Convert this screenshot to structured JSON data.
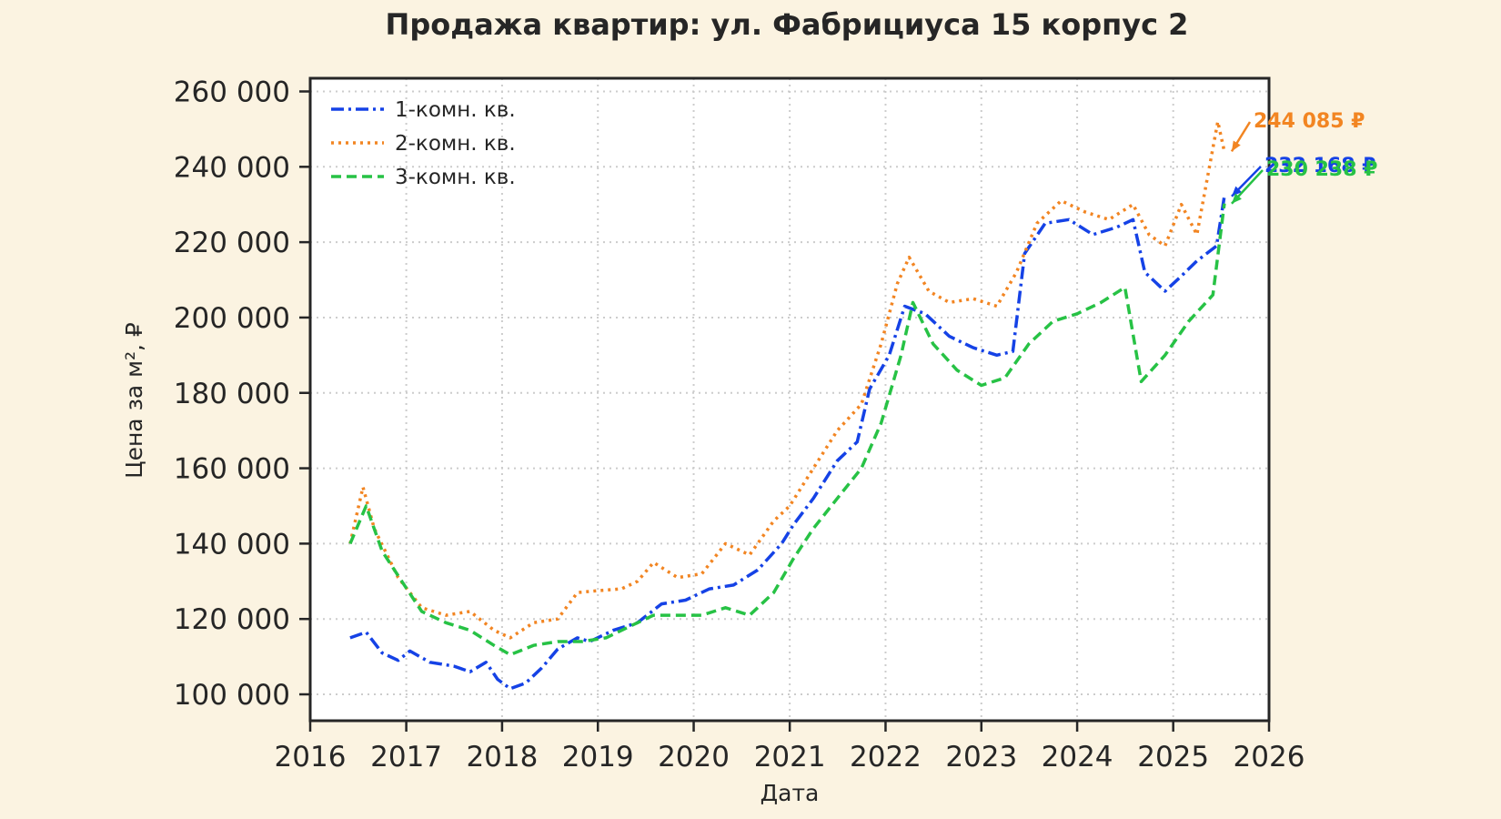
{
  "chart_data": {
    "type": "line",
    "title": "Продажа квартир: ул. Фабрициуса 15 корпус 2",
    "xlabel": "Дата",
    "ylabel": "Цена за м², ₽",
    "xlim": [
      "2016-01-01",
      "2026-01-01"
    ],
    "ylim": [
      93000,
      263500
    ],
    "x_ticks": [
      "2016",
      "2017",
      "2018",
      "2019",
      "2020",
      "2021",
      "2022",
      "2023",
      "2024",
      "2025",
      "2026"
    ],
    "y_ticks": [
      "100 000",
      "120 000",
      "140 000",
      "160 000",
      "180 000",
      "200 000",
      "220 000",
      "240 000",
      "260 000"
    ],
    "grid": true,
    "legend_position": "top-left",
    "colors": {
      "background": "#fbf3e1",
      "plot_bg": "#ffffff",
      "frame": "#262626",
      "grid": "#cccccc"
    },
    "series": [
      {
        "name": "1-комн. кв.",
        "color": "#1542e6",
        "style": "dashdot",
        "end_label": "232 168 ₽",
        "points": [
          [
            "2016-06-01",
            115000
          ],
          [
            "2016-08-01",
            116500
          ],
          [
            "2016-10-01",
            111000
          ],
          [
            "2016-12-01",
            109000
          ],
          [
            "2017-01-15",
            111500
          ],
          [
            "2017-04-01",
            108500
          ],
          [
            "2017-07-01",
            107500
          ],
          [
            "2017-09-01",
            106000
          ],
          [
            "2017-11-01",
            108500
          ],
          [
            "2017-12-15",
            104000
          ],
          [
            "2018-02-01",
            101500
          ],
          [
            "2018-04-01",
            103000
          ],
          [
            "2018-06-01",
            107000
          ],
          [
            "2018-08-01",
            112000
          ],
          [
            "2018-10-15",
            115000
          ],
          [
            "2018-12-01",
            114000
          ],
          [
            "2019-03-01",
            117000
          ],
          [
            "2019-06-01",
            119000
          ],
          [
            "2019-09-01",
            124000
          ],
          [
            "2019-12-01",
            125000
          ],
          [
            "2020-03-01",
            128000
          ],
          [
            "2020-06-01",
            129000
          ],
          [
            "2020-09-01",
            133000
          ],
          [
            "2020-12-01",
            140000
          ],
          [
            "2021-01-15",
            145000
          ],
          [
            "2021-04-01",
            152000
          ],
          [
            "2021-07-01",
            162000
          ],
          [
            "2021-09-15",
            167000
          ],
          [
            "2021-11-01",
            181000
          ],
          [
            "2022-01-15",
            190000
          ],
          [
            "2022-03-15",
            203000
          ],
          [
            "2022-06-01",
            201000
          ],
          [
            "2022-09-01",
            195000
          ],
          [
            "2022-12-01",
            192000
          ],
          [
            "2023-03-01",
            190000
          ],
          [
            "2023-05-01",
            191000
          ],
          [
            "2023-06-15",
            217000
          ],
          [
            "2023-09-01",
            225000
          ],
          [
            "2023-12-01",
            226000
          ],
          [
            "2024-03-01",
            222000
          ],
          [
            "2024-06-01",
            224000
          ],
          [
            "2024-08-01",
            226000
          ],
          [
            "2024-09-15",
            212000
          ],
          [
            "2024-12-01",
            207000
          ],
          [
            "2025-02-01",
            211000
          ],
          [
            "2025-04-01",
            215000
          ],
          [
            "2025-06-15",
            219000
          ],
          [
            "2025-07-15",
            232168
          ]
        ]
      },
      {
        "name": "2-комн. кв.",
        "color": "#f28522",
        "style": "dotted",
        "end_label": "244 085 ₽",
        "points": [
          [
            "2016-06-01",
            140000
          ],
          [
            "2016-07-20",
            155000
          ],
          [
            "2016-09-01",
            144000
          ],
          [
            "2016-12-01",
            131000
          ],
          [
            "2017-03-01",
            123000
          ],
          [
            "2017-06-01",
            121000
          ],
          [
            "2017-09-01",
            122000
          ],
          [
            "2017-12-01",
            117000
          ],
          [
            "2018-02-01",
            115000
          ],
          [
            "2018-05-01",
            119000
          ],
          [
            "2018-08-01",
            120000
          ],
          [
            "2018-10-15",
            127000
          ],
          [
            "2019-01-01",
            127500
          ],
          [
            "2019-04-01",
            128000
          ],
          [
            "2019-06-01",
            130000
          ],
          [
            "2019-08-01",
            135000
          ],
          [
            "2019-11-01",
            131000
          ],
          [
            "2020-02-01",
            132000
          ],
          [
            "2020-05-01",
            140000
          ],
          [
            "2020-08-01",
            137000
          ],
          [
            "2020-11-01",
            146000
          ],
          [
            "2021-01-01",
            150000
          ],
          [
            "2021-04-01",
            160000
          ],
          [
            "2021-07-01",
            170000
          ],
          [
            "2021-10-01",
            177000
          ],
          [
            "2021-12-15",
            193000
          ],
          [
            "2022-02-15",
            209000
          ],
          [
            "2022-04-01",
            216000
          ],
          [
            "2022-06-15",
            207000
          ],
          [
            "2022-09-01",
            204000
          ],
          [
            "2022-12-01",
            205000
          ],
          [
            "2023-03-01",
            203000
          ],
          [
            "2023-05-15",
            212000
          ],
          [
            "2023-08-01",
            225000
          ],
          [
            "2023-11-01",
            231000
          ],
          [
            "2024-02-01",
            228000
          ],
          [
            "2024-05-01",
            226000
          ],
          [
            "2024-08-01",
            230000
          ],
          [
            "2024-10-01",
            222000
          ],
          [
            "2024-12-01",
            219000
          ],
          [
            "2025-02-01",
            230000
          ],
          [
            "2025-04-01",
            222000
          ],
          [
            "2025-06-20",
            252000
          ],
          [
            "2025-07-15",
            244085
          ]
        ]
      },
      {
        "name": "3-комн. кв.",
        "color": "#27c245",
        "style": "dashed",
        "end_label": "230 238 ₽",
        "points": [
          [
            "2016-06-01",
            140000
          ],
          [
            "2016-08-01",
            150000
          ],
          [
            "2016-10-01",
            138000
          ],
          [
            "2016-12-15",
            130000
          ],
          [
            "2017-03-01",
            122000
          ],
          [
            "2017-06-01",
            119000
          ],
          [
            "2017-09-01",
            117000
          ],
          [
            "2017-12-01",
            113000
          ],
          [
            "2018-02-01",
            110500
          ],
          [
            "2018-05-01",
            113000
          ],
          [
            "2018-08-01",
            114000
          ],
          [
            "2018-11-01",
            114000
          ],
          [
            "2019-02-01",
            115000
          ],
          [
            "2019-05-01",
            118000
          ],
          [
            "2019-08-01",
            121000
          ],
          [
            "2019-11-01",
            121000
          ],
          [
            "2020-02-01",
            121000
          ],
          [
            "2020-05-01",
            123000
          ],
          [
            "2020-08-01",
            121000
          ],
          [
            "2020-11-01",
            127000
          ],
          [
            "2021-01-15",
            136000
          ],
          [
            "2021-04-01",
            144000
          ],
          [
            "2021-07-01",
            152000
          ],
          [
            "2021-10-01",
            160000
          ],
          [
            "2021-12-15",
            172000
          ],
          [
            "2022-03-01",
            190000
          ],
          [
            "2022-04-15",
            204000
          ],
          [
            "2022-07-01",
            193000
          ],
          [
            "2022-10-01",
            186000
          ],
          [
            "2023-01-01",
            182000
          ],
          [
            "2023-04-01",
            184000
          ],
          [
            "2023-07-01",
            193000
          ],
          [
            "2023-10-01",
            199000
          ],
          [
            "2024-01-01",
            201000
          ],
          [
            "2024-04-01",
            204000
          ],
          [
            "2024-07-01",
            208000
          ],
          [
            "2024-09-01",
            183000
          ],
          [
            "2024-12-01",
            190000
          ],
          [
            "2025-03-01",
            199000
          ],
          [
            "2025-06-01",
            206000
          ],
          [
            "2025-07-15",
            230238
          ]
        ]
      }
    ]
  }
}
